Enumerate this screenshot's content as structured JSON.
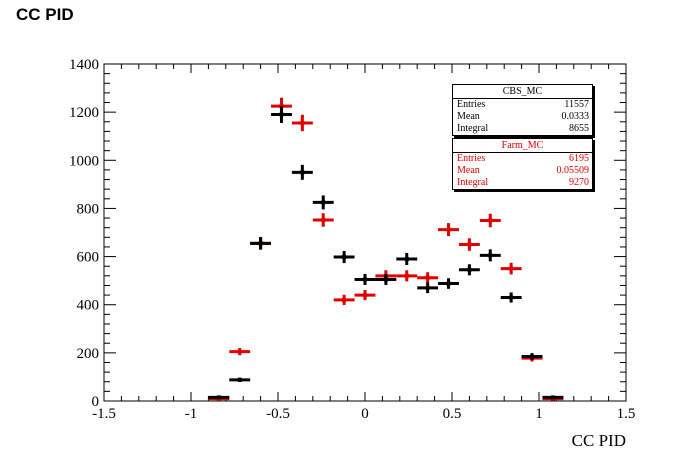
{
  "page": {
    "title": "CC PID"
  },
  "chart_data": {
    "type": "scatter",
    "title": "",
    "xlabel": "CC PID",
    "ylabel": "",
    "xlim": [
      -1.5,
      1.5
    ],
    "ylim": [
      0,
      1400
    ],
    "x_ticks": [
      -1.5,
      -1,
      -0.5,
      0,
      0.5,
      1,
      1.5
    ],
    "x_tick_labels": [
      "-1.5",
      "-1",
      "-0.5",
      "0",
      "0.5",
      "1",
      "1.5"
    ],
    "y_ticks": [
      0,
      200,
      400,
      600,
      800,
      1000,
      1200,
      1400
    ],
    "y_tick_labels": [
      "0",
      "200",
      "400",
      "600",
      "800",
      "1000",
      "1200",
      "1400"
    ],
    "bin_width": 0.12,
    "grid": false,
    "series": [
      {
        "name": "Farm_MC",
        "color": "#e00000",
        "x": [
          -0.84,
          -0.72,
          -0.6,
          -0.48,
          -0.36,
          -0.24,
          -0.12,
          0.0,
          0.12,
          0.24,
          0.36,
          0.48,
          0.6,
          0.72,
          0.84,
          0.96,
          1.08
        ],
        "y": [
          10,
          205,
          655,
          1225,
          1155,
          752,
          420,
          440,
          520,
          520,
          512,
          712,
          650,
          750,
          550,
          178,
          10
        ],
        "err": [
          10,
          15,
          26,
          35,
          34,
          28,
          21,
          21,
          23,
          23,
          23,
          27,
          26,
          28,
          24,
          14,
          8
        ]
      },
      {
        "name": "CBS_MC",
        "color": "#000000",
        "x": [
          -0.84,
          -0.72,
          -0.6,
          -0.48,
          -0.36,
          -0.24,
          -0.12,
          0.0,
          0.12,
          0.24,
          0.36,
          0.48,
          0.6,
          0.72,
          0.84,
          0.96,
          1.08
        ],
        "y": [
          15,
          88,
          655,
          1190,
          950,
          825,
          598,
          505,
          505,
          590,
          470,
          488,
          545,
          605,
          430,
          185,
          15
        ],
        "err": [
          5,
          9,
          26,
          35,
          31,
          29,
          25,
          23,
          23,
          25,
          22,
          22,
          23,
          25,
          21,
          14,
          5
        ]
      }
    ]
  },
  "stats": {
    "cbs": {
      "title": "CBS_MC",
      "rows": [
        {
          "label": "Entries",
          "value": "11557"
        },
        {
          "label": "Mean",
          "value": "0.0333"
        },
        {
          "label": "Integral",
          "value": "8655"
        }
      ]
    },
    "farm": {
      "title": "Farm_MC",
      "rows": [
        {
          "label": "Entries",
          "value": "6195"
        },
        {
          "label": "Mean",
          "value": "0.05509"
        },
        {
          "label": "Integral",
          "value": "9270"
        }
      ]
    }
  }
}
